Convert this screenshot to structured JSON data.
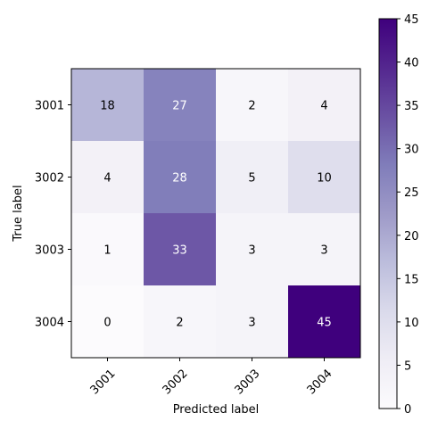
{
  "chart_data": {
    "type": "heatmap",
    "title": "",
    "xlabel": "Predicted label",
    "ylabel": "True label",
    "x_categories": [
      "3001",
      "3002",
      "3003",
      "3004"
    ],
    "y_categories": [
      "3001",
      "3002",
      "3003",
      "3004"
    ],
    "values": [
      [
        18,
        27,
        2,
        4
      ],
      [
        4,
        28,
        5,
        10
      ],
      [
        1,
        33,
        3,
        3
      ],
      [
        0,
        2,
        3,
        45
      ]
    ],
    "colormap": "Purples",
    "color_range": [
      0,
      45
    ],
    "colorbar_ticks": [
      "0",
      "5",
      "10",
      "15",
      "20",
      "25",
      "30",
      "35",
      "40",
      "45"
    ],
    "text_color_dark": "#000000",
    "text_color_light": "#ffffff",
    "x_tick_rotation_deg": 45
  }
}
